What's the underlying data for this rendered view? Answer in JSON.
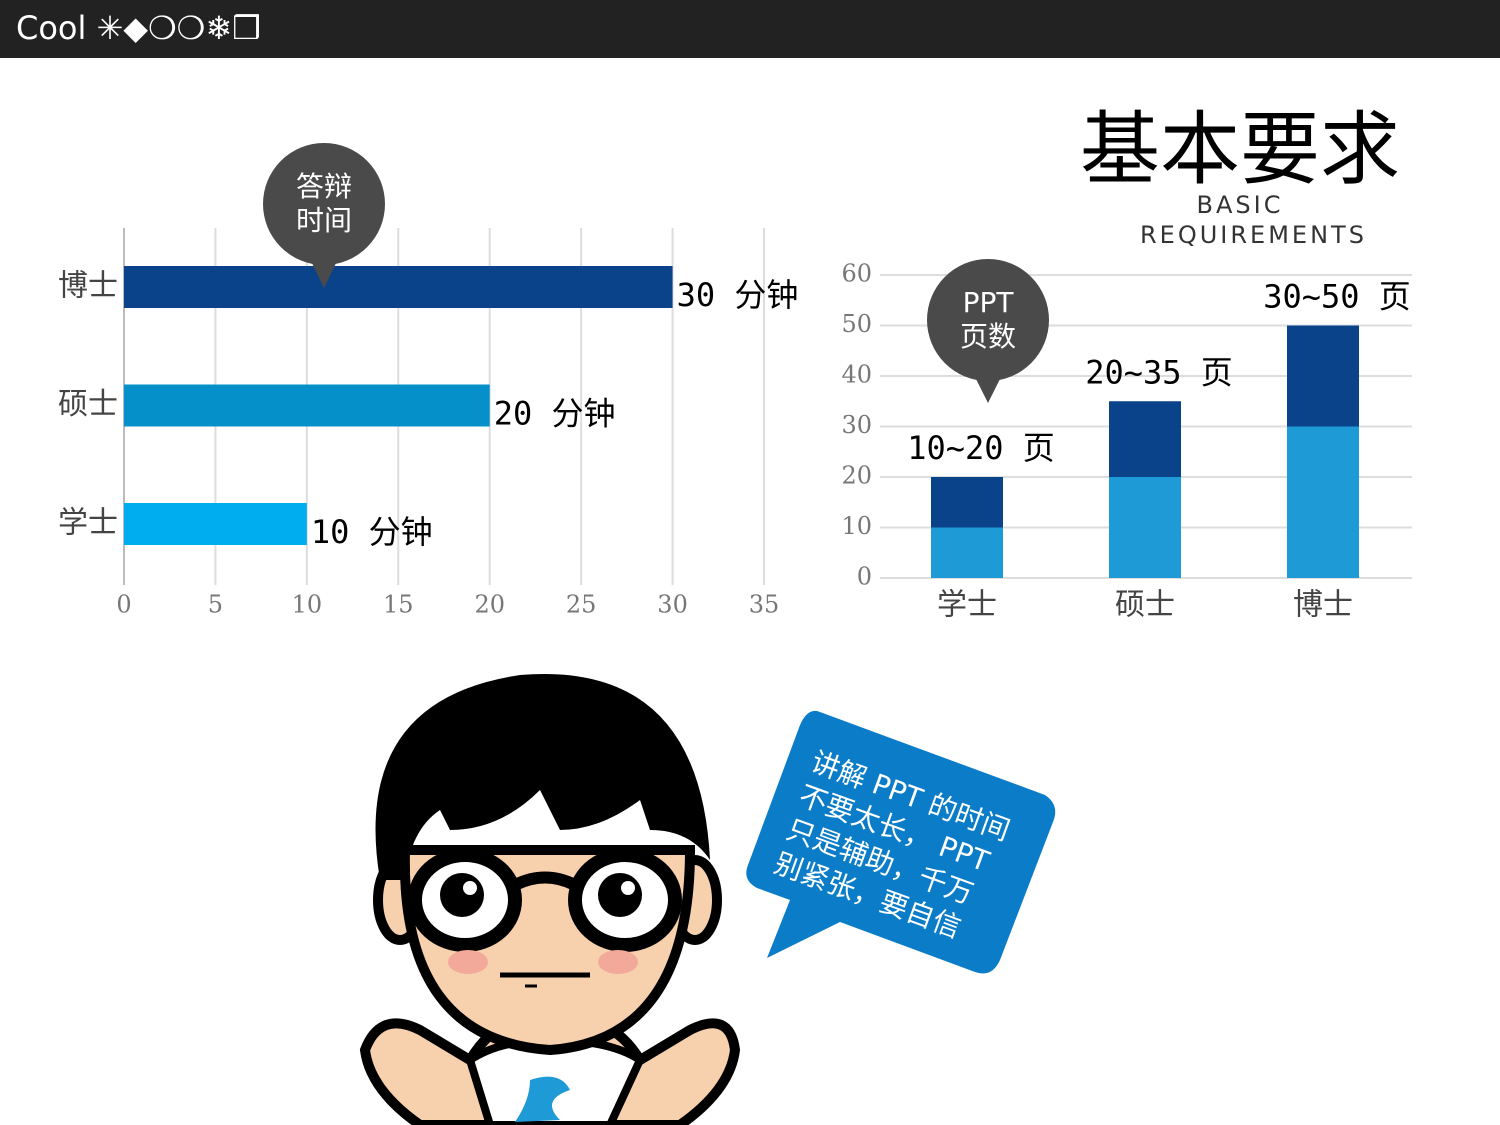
{
  "header": {
    "title": "Cool ✳◆❍❍❄❒"
  },
  "heading": {
    "title": "基本要求",
    "subtitle": "BASIC REQUIREMENTS"
  },
  "speech": {
    "lines": [
      "讲解 PPT 的时间",
      "不要太长， PPT",
      "只是辅助，千万",
      "别紧张，要自信"
    ]
  },
  "chart_data": [
    {
      "type": "bar",
      "orientation": "horizontal",
      "callout": [
        "答辩",
        "时间"
      ],
      "categories": [
        "博士",
        "硕士",
        "学士"
      ],
      "values": [
        30,
        20,
        10
      ],
      "value_labels": [
        "30 分钟",
        "20 分钟",
        "10 分钟"
      ],
      "colors": [
        "#0a4389",
        "#0590c9",
        "#00adef"
      ],
      "xlim": [
        0,
        35
      ],
      "xticks": [
        0,
        5,
        10,
        15,
        20,
        25,
        30,
        35
      ],
      "grid": true
    },
    {
      "type": "stacked_bar",
      "callout": [
        "PPT",
        "页数"
      ],
      "categories": [
        "学士",
        "硕士",
        "博士"
      ],
      "series": [
        {
          "color": "#1e9ad6",
          "values": [
            10,
            20,
            30
          ]
        },
        {
          "color": "#0a4389",
          "values": [
            10,
            15,
            20
          ]
        }
      ],
      "bar_labels": [
        "10~20 页",
        "20~35 页",
        "30~50 页"
      ],
      "ylim": [
        0,
        60
      ],
      "yticks": [
        0,
        10,
        20,
        30,
        40,
        50,
        60
      ],
      "grid": true
    }
  ]
}
